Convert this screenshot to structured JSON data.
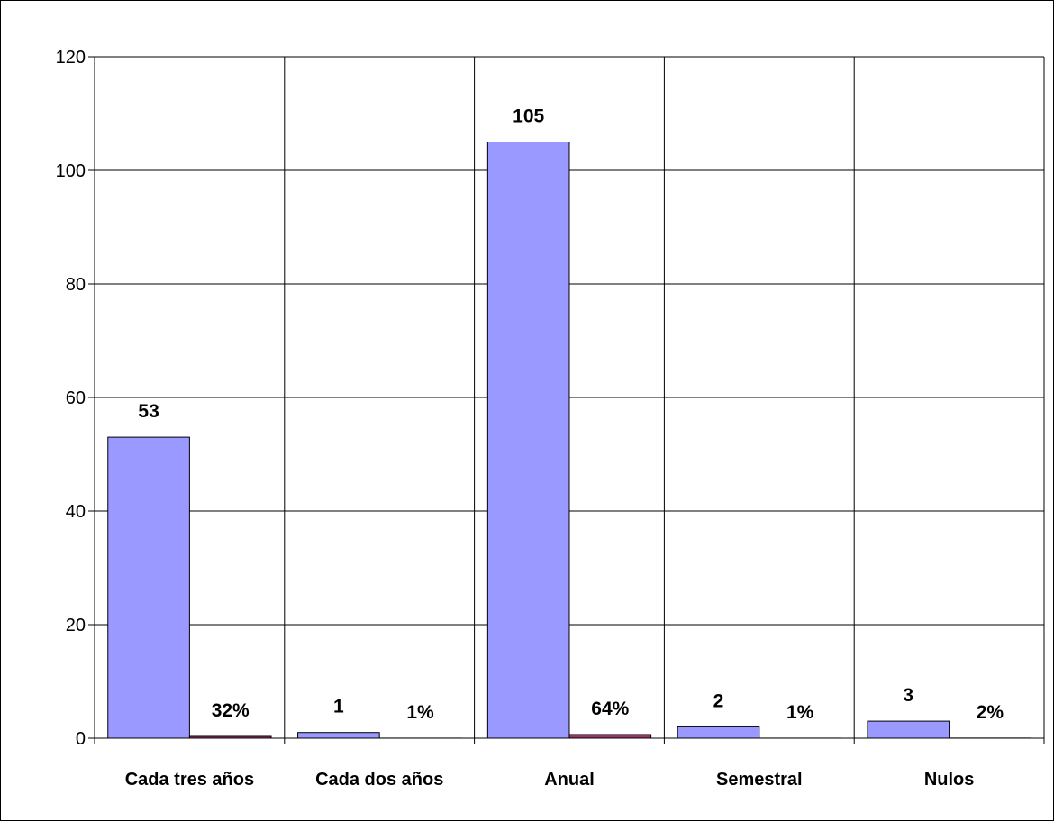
{
  "chart_data": {
    "type": "bar",
    "title": "",
    "xlabel": "",
    "ylabel": "",
    "ylim": [
      0,
      120
    ],
    "yticks": [
      0,
      20,
      40,
      60,
      80,
      100,
      120
    ],
    "grid": true,
    "legend": "none",
    "categories": [
      "Cada tres años",
      "Cada dos años",
      "Anual",
      "Semestral",
      "Nulos"
    ],
    "series": [
      {
        "values": [
          53,
          1,
          105,
          2,
          3
        ],
        "color": "#9999ff",
        "data_labels": [
          "53",
          "1",
          "105",
          "2",
          "3"
        ]
      },
      {
        "values": [
          0.32,
          0.01,
          0.64,
          0.01,
          0.02
        ],
        "color": "#993366",
        "data_labels": [
          "32%",
          "1%",
          "64%",
          "1%",
          "2%"
        ]
      }
    ]
  }
}
